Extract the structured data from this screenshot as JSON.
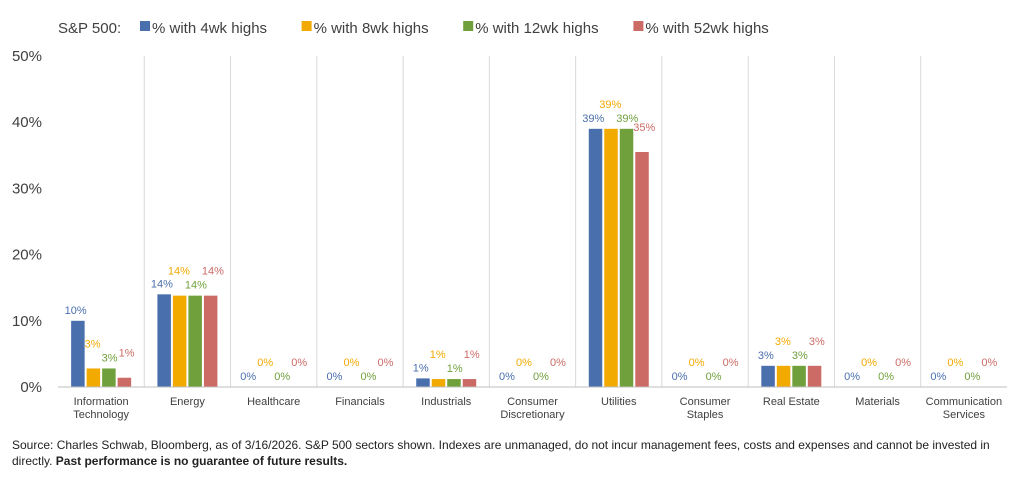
{
  "colors": {
    "axis": "#bfbfbf",
    "grid": "#d9d9d9",
    "text": "#404040"
  },
  "source": {
    "text": "Source: Charles Schwab, Bloomberg, as of 3/16/2026. S&P 500 sectors shown. Indexes are unmanaged, do not incur management fees, costs and expenses and cannot be invested in directly.",
    "bold": "Past performance is no guarantee of future results."
  },
  "chart_data": {
    "type": "bar",
    "title": "S&P 500:",
    "legend_position": "top",
    "grid": "vertical category separators",
    "ylim": [
      0,
      50
    ],
    "y_ticks": [
      "0%",
      "10%",
      "20%",
      "30%",
      "40%",
      "50%"
    ],
    "categories": [
      [
        "Information",
        "Technology"
      ],
      [
        "Energy"
      ],
      [
        "Healthcare"
      ],
      [
        "Financials"
      ],
      [
        "Industrials"
      ],
      [
        "Consumer",
        "Discretionary"
      ],
      [
        "Utilities"
      ],
      [
        "Consumer",
        "Staples"
      ],
      [
        "Real Estate"
      ],
      [
        "Materials"
      ],
      [
        "Communication",
        "Services"
      ]
    ],
    "series": [
      {
        "name": "% with 4wk highs",
        "color": "#4a6fad",
        "values": [
          10,
          14,
          0,
          0,
          1.3,
          0,
          39,
          0,
          3.2,
          0,
          0
        ],
        "labels": [
          "10%",
          "14%",
          "0%",
          "0%",
          "1%",
          "0%",
          "39%",
          "0%",
          "3%",
          "0%",
          "0%"
        ]
      },
      {
        "name": "% with 8wk highs",
        "color": "#f2a900",
        "values": [
          2.8,
          13.8,
          0,
          0,
          1.2,
          0,
          39,
          0,
          3.2,
          0,
          0
        ],
        "labels": [
          "3%",
          "14%",
          "0%",
          "0%",
          "1%",
          "0%",
          "39%",
          "0%",
          "3%",
          "0%",
          "0%"
        ]
      },
      {
        "name": "% with 12wk highs",
        "color": "#70a03c",
        "values": [
          2.8,
          13.8,
          0,
          0,
          1.2,
          0,
          39,
          0,
          3.2,
          0,
          0
        ],
        "labels": [
          "3%",
          "14%",
          "0%",
          "0%",
          "1%",
          "0%",
          "39%",
          "0%",
          "3%",
          "0%",
          "0%"
        ]
      },
      {
        "name": "% with 52wk highs",
        "color": "#cc6b66",
        "values": [
          1.4,
          13.8,
          0,
          0,
          1.2,
          0,
          35.5,
          0,
          3.2,
          0,
          0
        ],
        "labels": [
          "1%",
          "14%",
          "0%",
          "0%",
          "1%",
          "0%",
          "35%",
          "0%",
          "3%",
          "0%",
          "0%"
        ]
      }
    ]
  }
}
